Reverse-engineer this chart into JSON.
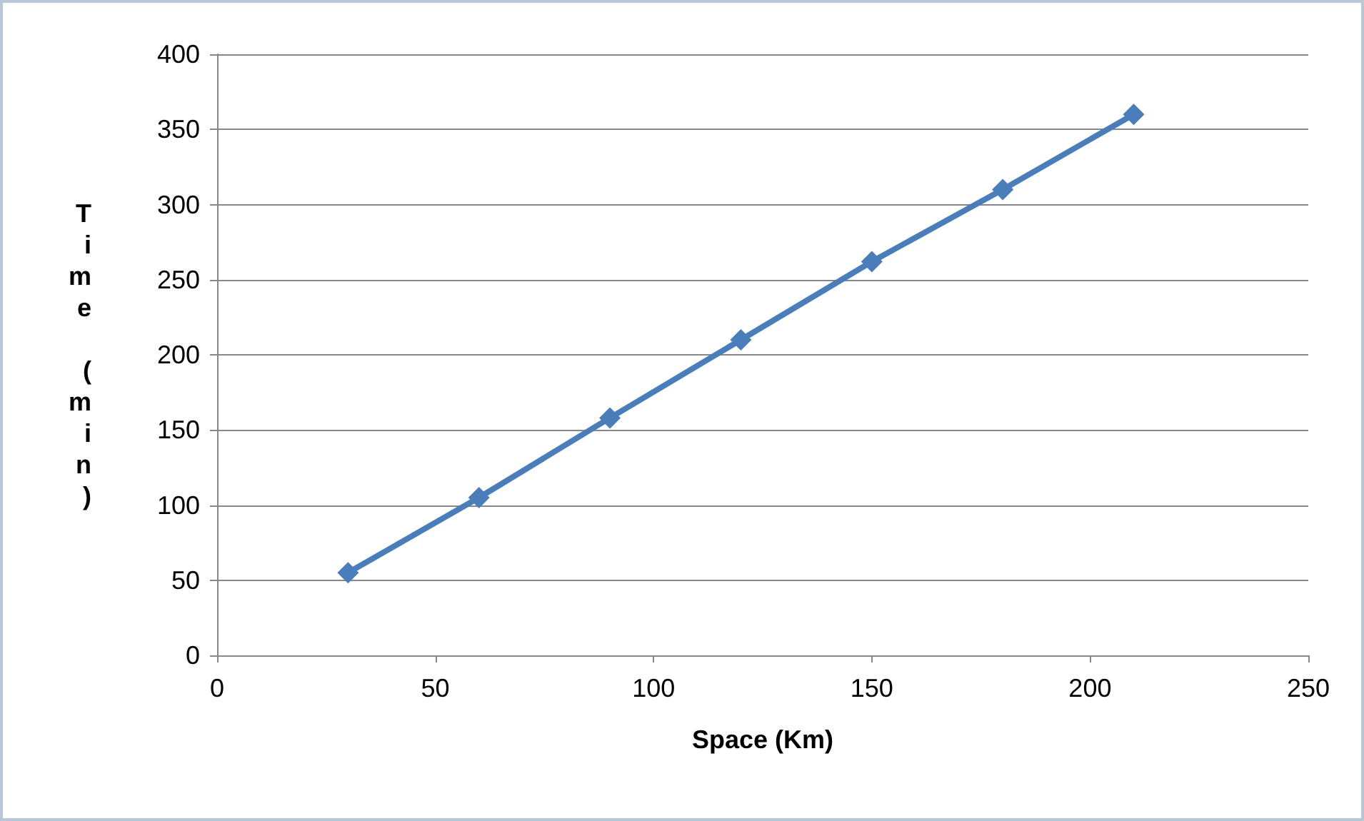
{
  "chart_data": {
    "type": "line",
    "xlabel": "Space (Km)",
    "ylabel": "Time (min)",
    "x": [
      30,
      60,
      90,
      120,
      150,
      180,
      210
    ],
    "series": [
      {
        "color": "#4a7ebb",
        "values": [
          55,
          105,
          158,
          210,
          262,
          310,
          360
        ]
      }
    ],
    "xlim": [
      0,
      250
    ],
    "xticks": [
      0,
      50,
      100,
      150,
      200,
      250
    ],
    "ylim": [
      0,
      400
    ],
    "yticks": [
      0,
      50,
      100,
      150,
      200,
      250,
      300,
      350,
      400
    ],
    "grid": "y",
    "marker": "diamond",
    "line_style": "solid"
  }
}
